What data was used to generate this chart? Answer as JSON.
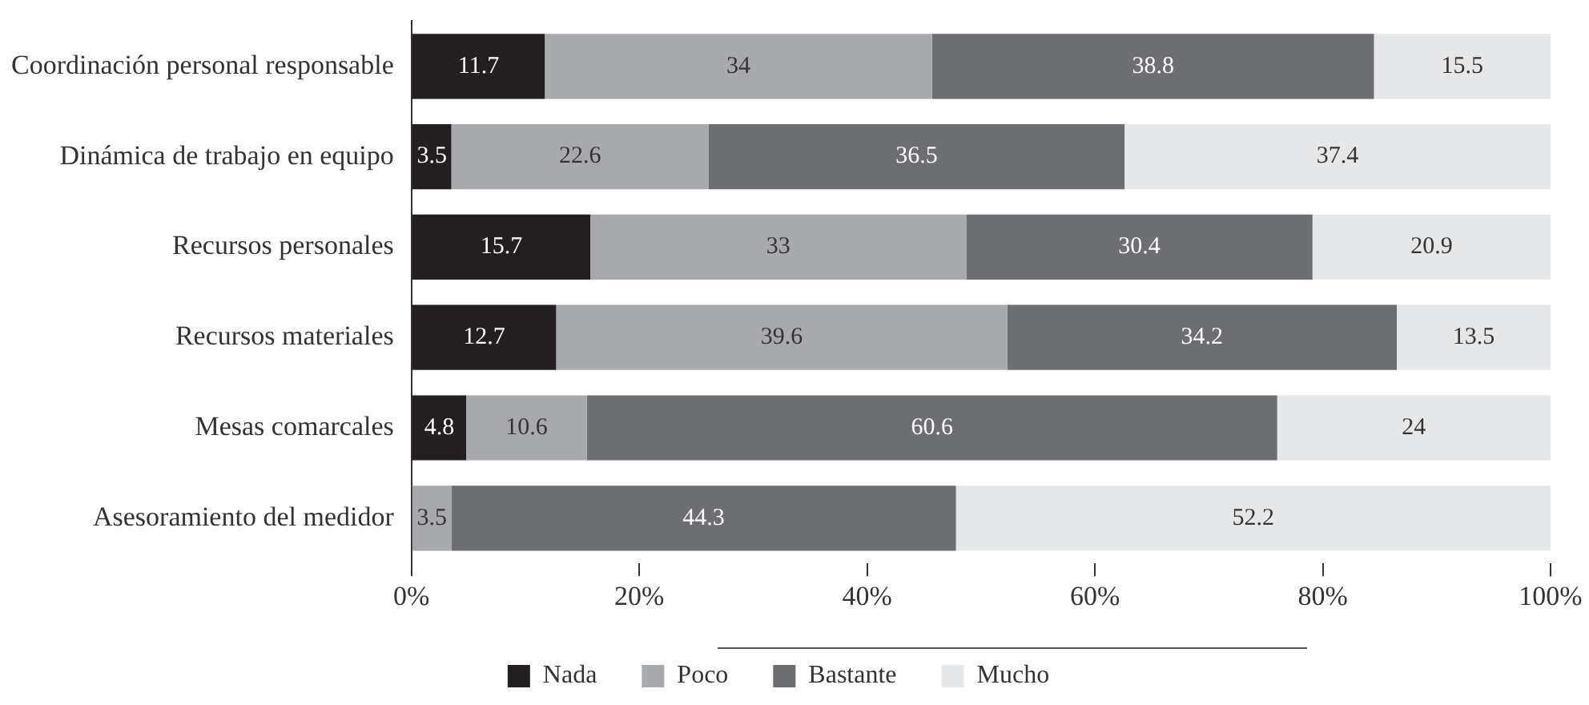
{
  "chart_data": {
    "type": "bar",
    "orientation": "horizontal",
    "stacked": true,
    "categories": [
      "Coordinación personal responsable",
      "Dinámica de trabajo en equipo",
      "Recursos personales",
      "Recursos materiales",
      "Mesas comarcales",
      "Asesoramiento del medidor"
    ],
    "series": [
      {
        "name": "Nada",
        "color": "#231f20",
        "values": [
          11.7,
          3.5,
          15.7,
          12.7,
          4.8,
          null
        ]
      },
      {
        "name": "Poco",
        "color": "#a7a9ac",
        "values": [
          34,
          22.6,
          33,
          39.6,
          10.6,
          3.5
        ]
      },
      {
        "name": "Bastante",
        "color": "#6d6e71",
        "values": [
          38.8,
          36.5,
          30.4,
          34.2,
          60.6,
          44.3
        ]
      },
      {
        "name": "Mucho",
        "color": "#e6e7e8",
        "values": [
          15.5,
          37.4,
          20.9,
          13.5,
          24,
          52.2
        ]
      }
    ],
    "xlim": [
      0,
      100
    ],
    "xticks": [
      {
        "value": 0,
        "label": "0%"
      },
      {
        "value": 20,
        "label": "20%"
      },
      {
        "value": 40,
        "label": "40%"
      },
      {
        "value": 60,
        "label": "60%"
      },
      {
        "value": 80,
        "label": "80%"
      },
      {
        "value": 100,
        "label": "100%"
      }
    ],
    "data_labels": true,
    "grid": false,
    "legend": "bottom"
  }
}
